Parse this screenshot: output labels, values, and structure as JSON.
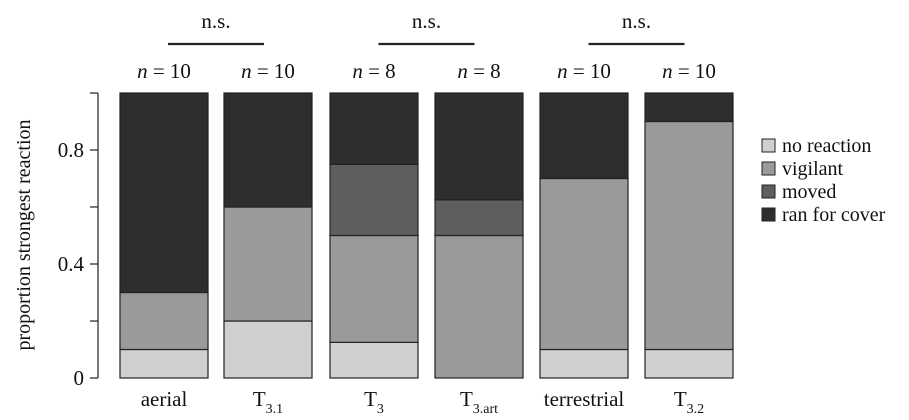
{
  "chart_data": {
    "type": "bar",
    "stacked": true,
    "normalized": true,
    "ylabel": "proportion strongest reaction",
    "ylim": [
      0,
      1
    ],
    "yticks": [
      0,
      0.4,
      0.8
    ],
    "ytick_labels": [
      "0",
      "0.4",
      "0.8"
    ],
    "legend_position": "right",
    "categories": [
      {
        "main": "aerial",
        "sub": ""
      },
      {
        "main": "T",
        "sub": "3.1"
      },
      {
        "main": "T",
        "sub": "3"
      },
      {
        "main": "T",
        "sub": "3.art"
      },
      {
        "main": "terrestrial",
        "sub": ""
      },
      {
        "main": "T",
        "sub": "3.2"
      }
    ],
    "n_labels": [
      {
        "n": "n",
        "value": "= 10"
      },
      {
        "n": "n",
        "value": "= 10"
      },
      {
        "n": "n",
        "value": "= 8"
      },
      {
        "n": "n",
        "value": "= 8"
      },
      {
        "n": "n",
        "value": "= 10"
      },
      {
        "n": "n",
        "value": "= 10"
      }
    ],
    "series": [
      {
        "name": "no reaction",
        "color": "#d0d0d0",
        "values": [
          0.1,
          0.2,
          0.125,
          0.0,
          0.1,
          0.1
        ]
      },
      {
        "name": "vigilant",
        "color": "#9a9a9a",
        "values": [
          0.2,
          0.4,
          0.375,
          0.5,
          0.6,
          0.8
        ]
      },
      {
        "name": "moved",
        "color": "#5e5e5e",
        "values": [
          0.0,
          0.0,
          0.25,
          0.125,
          0.0,
          0.0
        ]
      },
      {
        "name": "ran for cover",
        "color": "#2e2e2e",
        "values": [
          0.7,
          0.4,
          0.25,
          0.375,
          0.3,
          0.1
        ]
      }
    ],
    "comparisons": [
      {
        "pair": [
          0,
          1
        ],
        "label": "n.s."
      },
      {
        "pair": [
          2,
          3
        ],
        "label": "n.s."
      },
      {
        "pair": [
          4,
          5
        ],
        "label": "n.s."
      }
    ]
  }
}
